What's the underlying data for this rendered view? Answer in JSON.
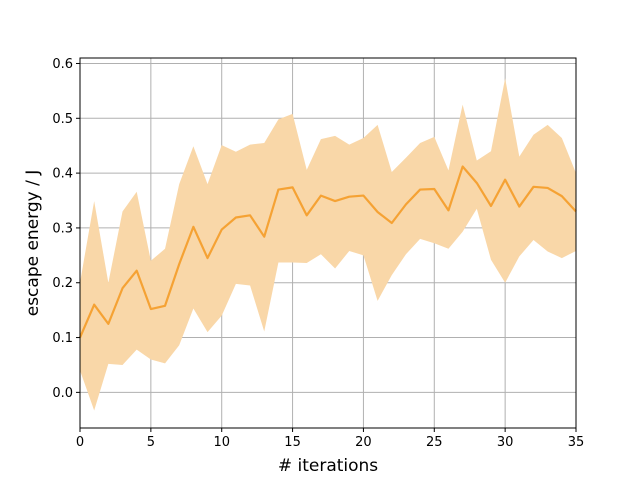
{
  "chart_data": {
    "type": "line",
    "title": "",
    "xlabel": "# iterations",
    "ylabel": "escape energy / J",
    "xlim": [
      0,
      35
    ],
    "ylim": [
      -0.065,
      0.61
    ],
    "xticks": [
      0,
      5,
      10,
      15,
      20,
      25,
      30,
      35
    ],
    "yticks": [
      0.0,
      0.1,
      0.2,
      0.3,
      0.4,
      0.5,
      0.6
    ],
    "grid": true,
    "legend": "none",
    "line_color": "#f5a234",
    "band_color": "#f9d7a8",
    "series": [
      {
        "x": [
          0,
          1,
          2,
          3,
          4,
          5,
          6,
          7,
          8,
          9,
          10,
          11,
          12,
          13,
          14,
          15,
          16,
          17,
          18,
          19,
          20,
          21,
          22,
          23,
          24,
          25,
          26,
          27,
          28,
          29,
          30,
          31,
          32,
          33,
          34,
          35
        ],
        "mean": [
          0.1,
          0.16,
          0.125,
          0.19,
          0.222,
          0.152,
          0.158,
          0.234,
          0.302,
          0.245,
          0.297,
          0.319,
          0.323,
          0.284,
          0.37,
          0.374,
          0.323,
          0.359,
          0.349,
          0.357,
          0.359,
          0.329,
          0.309,
          0.343,
          0.37,
          0.371,
          0.332,
          0.412,
          0.382,
          0.34,
          0.388,
          0.339,
          0.375,
          0.373,
          0.358,
          0.33
        ],
        "lower": [
          0.04,
          -0.033,
          0.052,
          0.05,
          0.078,
          0.06,
          0.053,
          0.086,
          0.153,
          0.11,
          0.14,
          0.198,
          0.195,
          0.111,
          0.237,
          0.237,
          0.236,
          0.252,
          0.226,
          0.258,
          0.25,
          0.167,
          0.214,
          0.252,
          0.28,
          0.272,
          0.262,
          0.293,
          0.335,
          0.242,
          0.2,
          0.248,
          0.278,
          0.257,
          0.245,
          0.258
        ],
        "upper": [
          0.2,
          0.349,
          0.2,
          0.33,
          0.366,
          0.24,
          0.262,
          0.38,
          0.449,
          0.38,
          0.451,
          0.439,
          0.452,
          0.455,
          0.498,
          0.508,
          0.406,
          0.462,
          0.468,
          0.452,
          0.464,
          0.488,
          0.402,
          0.428,
          0.455,
          0.466,
          0.405,
          0.525,
          0.423,
          0.44,
          0.573,
          0.43,
          0.47,
          0.488,
          0.464,
          0.4
        ]
      }
    ]
  }
}
